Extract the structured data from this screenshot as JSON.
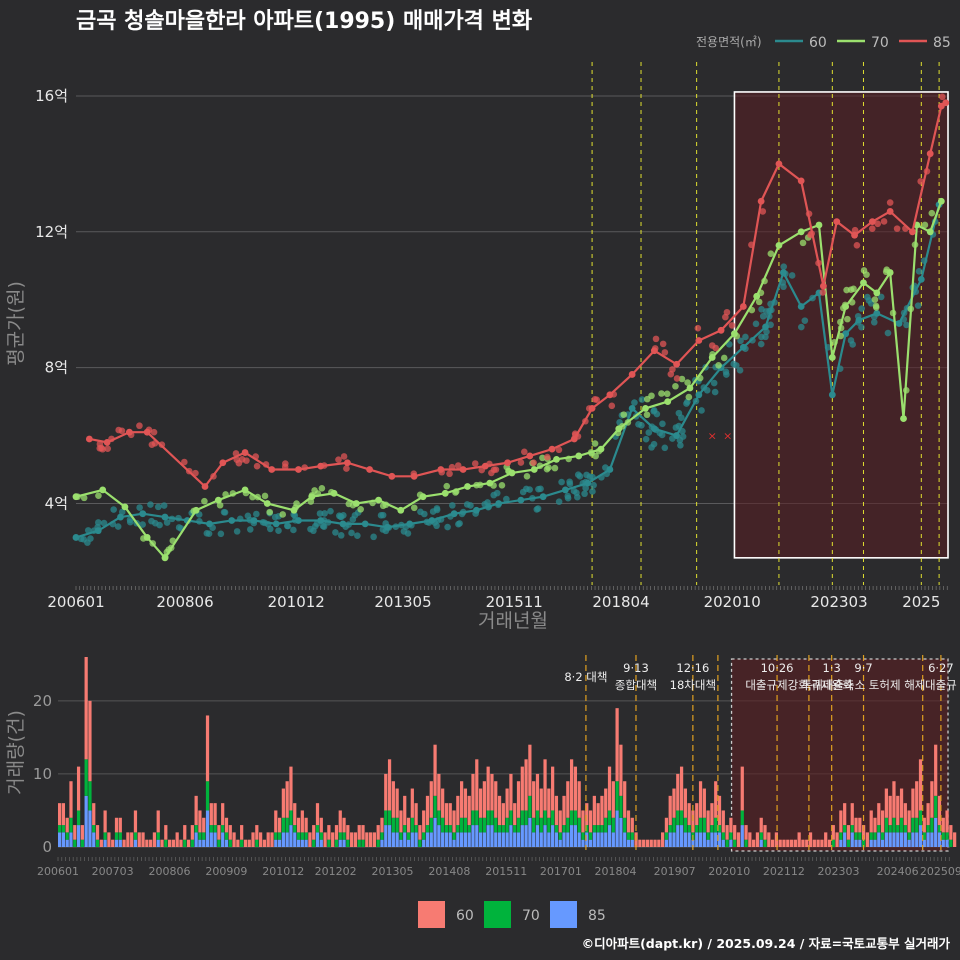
{
  "title": "금곡 청솔마을한라 아파트(1995) 매매가격 변화",
  "footer": "©디아파트(dapt.kr) / 2025.09.24 / 자료=국토교통부 실거래가",
  "colors": {
    "s60": "#2b8a8e",
    "s70": "#9be06e",
    "s85": "#e05555",
    "b60": "#f77b72",
    "b70": "#00b33c",
    "b85": "#6699ff",
    "policy": "#e0e030",
    "policyBottom": "#e0a020"
  },
  "chart_data": [
    {
      "type": "line",
      "title": "금곡 청솔마을한라 아파트(1995) 매매가격 변화",
      "xlabel": "거래년월",
      "ylabel": "평균가(원)",
      "xlim": [
        2006.0,
        2025.6
      ],
      "ylim": [
        1.6,
        17.0
      ],
      "y_ticks": [
        4,
        8,
        12,
        16
      ],
      "y_tick_labels": [
        "4억",
        "8억",
        "12억",
        "16억"
      ],
      "x_ticks": [
        2006.0,
        2008.45,
        2010.95,
        2013.35,
        2015.85,
        2018.25,
        2020.75,
        2023.15,
        2025.0
      ],
      "x_tick_labels": [
        "200601",
        "200806",
        "201012",
        "201305",
        "201511",
        "201804",
        "202010",
        "202303",
        "2025"
      ],
      "legend_title": "전용면적(㎡)",
      "policy_lines": [
        2017.6,
        2018.7,
        2019.95,
        2021.8,
        2023.0,
        2023.7,
        2025.0,
        2025.4
      ],
      "highlight_range": [
        2020.8,
        2025.6
      ],
      "cancelled_marks": [
        {
          "x": 2020.3,
          "y": 6.0
        },
        {
          "x": 2020.65,
          "y": 6.0
        }
      ],
      "series": [
        {
          "name": "60",
          "x": [
            2006.0,
            2006.5,
            2007.0,
            2007.5,
            2008.0,
            2008.5,
            2009.0,
            2009.5,
            2010.0,
            2010.5,
            2011.0,
            2011.5,
            2012.0,
            2012.5,
            2013.0,
            2013.5,
            2014.0,
            2014.5,
            2015.0,
            2015.5,
            2016.0,
            2016.5,
            2017.0,
            2017.5,
            2018.0,
            2018.5,
            2019.0,
            2019.5,
            2020.0,
            2020.5,
            2021.0,
            2021.5,
            2021.9,
            2022.3,
            2022.7,
            2023.0,
            2023.3,
            2023.6,
            2024.0,
            2024.5,
            2025.0,
            2025.4
          ],
          "y": [
            3.0,
            3.2,
            3.6,
            3.7,
            3.6,
            3.5,
            3.4,
            3.5,
            3.5,
            3.4,
            3.5,
            3.5,
            3.4,
            3.4,
            3.3,
            3.4,
            3.5,
            3.7,
            3.8,
            4.0,
            4.1,
            4.2,
            4.4,
            4.6,
            5.0,
            6.8,
            6.2,
            6.0,
            7.2,
            8.0,
            8.6,
            9.2,
            10.8,
            9.8,
            10.2,
            7.2,
            9.0,
            9.4,
            9.6,
            9.3,
            10.6,
            12.8
          ]
        },
        {
          "name": "70",
          "x": [
            2006.0,
            2006.6,
            2007.1,
            2007.6,
            2008.0,
            2008.7,
            2009.2,
            2009.8,
            2010.3,
            2010.9,
            2011.3,
            2011.8,
            2012.3,
            2012.8,
            2013.3,
            2013.8,
            2014.3,
            2014.8,
            2015.3,
            2015.8,
            2016.3,
            2016.8,
            2017.3,
            2017.8,
            2018.2,
            2018.8,
            2019.3,
            2019.8,
            2020.3,
            2020.8,
            2021.3,
            2021.8,
            2022.3,
            2022.7,
            2023.0,
            2023.3,
            2023.7,
            2024.0,
            2024.3,
            2024.6,
            2024.9,
            2025.2,
            2025.45
          ],
          "y": [
            4.2,
            4.4,
            3.9,
            3.0,
            2.4,
            3.8,
            4.1,
            4.4,
            4.0,
            3.8,
            4.2,
            4.3,
            4.0,
            4.1,
            3.8,
            4.2,
            4.3,
            4.5,
            4.6,
            4.9,
            5.0,
            5.3,
            5.4,
            5.6,
            6.2,
            6.8,
            7.0,
            7.4,
            8.3,
            9.0,
            10.1,
            11.6,
            12.0,
            12.2,
            8.3,
            9.8,
            10.5,
            10.2,
            10.8,
            6.5,
            12.2,
            12.0,
            12.9
          ]
        },
        {
          "name": "85",
          "x": [
            2006.3,
            2006.7,
            2007.2,
            2007.6,
            2008.9,
            2009.3,
            2009.8,
            2010.4,
            2011.0,
            2011.5,
            2012.1,
            2012.6,
            2013.1,
            2013.6,
            2014.2,
            2014.7,
            2015.2,
            2015.7,
            2016.2,
            2016.7,
            2017.2,
            2017.6,
            2018.0,
            2018.5,
            2019.0,
            2019.5,
            2020.0,
            2020.5,
            2021.0,
            2021.4,
            2021.8,
            2022.3,
            2022.8,
            2023.1,
            2023.5,
            2023.9,
            2024.3,
            2024.8,
            2025.2,
            2025.45,
            2025.55
          ],
          "y": [
            5.9,
            5.8,
            6.1,
            6.1,
            4.5,
            5.2,
            5.5,
            5.0,
            5.0,
            5.1,
            5.2,
            5.0,
            4.8,
            4.8,
            5.0,
            5.0,
            5.1,
            5.2,
            5.4,
            5.6,
            5.9,
            6.8,
            7.2,
            7.8,
            8.5,
            8.1,
            8.8,
            9.1,
            9.8,
            12.9,
            14.0,
            13.5,
            10.4,
            12.3,
            11.9,
            12.3,
            12.6,
            12.0,
            14.3,
            15.7,
            15.8
          ]
        }
      ]
    },
    {
      "type": "bar",
      "stacked": true,
      "ylabel": "거래량(건)",
      "ylim": [
        0,
        26
      ],
      "y_ticks": [
        0,
        10,
        20
      ],
      "x_ticks": [
        2006.0,
        2007.2,
        2008.45,
        2009.7,
        2010.95,
        2012.1,
        2013.35,
        2014.6,
        2015.85,
        2017.05,
        2018.25,
        2019.55,
        2020.75,
        2021.95,
        2023.15,
        2024.45,
        2025.4
      ],
      "x_tick_labels": [
        "200601",
        "200703",
        "200806",
        "200909",
        "201012",
        "201202",
        "201305",
        "201408",
        "201511",
        "201701",
        "201804",
        "201907",
        "202010",
        "202112",
        "202303",
        "202406",
        "202509"
      ],
      "legend": [
        "60",
        "70",
        "85"
      ],
      "policy_lines": [
        2017.6,
        2018.7,
        2019.95,
        2020.5,
        2021.8,
        2022.5,
        2023.0,
        2023.7,
        2025.0,
        2025.4
      ],
      "highlight_range": [
        2020.8,
        2025.6
      ],
      "annotations": [
        {
          "x": 2017.6,
          "date": "",
          "label": "8·2 대책"
        },
        {
          "x": 2018.7,
          "date": "9·13",
          "label": "종합대책"
        },
        {
          "x": 2019.95,
          "date": "12·16",
          "label": "18차대책"
        },
        {
          "x": 2021.8,
          "date": "10·26",
          "label": "대출규제강화"
        },
        {
          "x": 2023.0,
          "date": "1·3",
          "label": "규제완화"
        },
        {
          "x": 2023.7,
          "date": "9·7",
          "label": "특례대출축소 토허제 해제"
        },
        {
          "x": 2025.4,
          "date": "6·27",
          "label": "대출규"
        }
      ],
      "monthly_totals_by_year": {
        "2006": [
          6,
          6,
          4,
          9,
          3,
          11,
          3,
          26,
          20,
          6,
          3,
          1
        ],
        "2007": [
          5,
          2,
          1,
          4,
          4,
          1,
          2,
          2,
          5,
          2,
          2,
          1
        ],
        "2008": [
          1,
          2,
          5,
          1,
          3,
          1,
          1,
          2,
          1,
          3,
          1,
          3
        ],
        "2009": [
          7,
          5,
          4,
          18,
          6,
          6,
          3,
          6,
          4,
          3,
          2,
          1
        ],
        "2010": [
          3,
          1,
          1,
          2,
          3,
          2,
          1,
          2,
          2,
          5,
          4,
          8
        ],
        "2011": [
          9,
          11,
          6,
          4,
          5,
          4,
          2,
          3,
          6,
          4,
          2,
          3
        ],
        "2012": [
          2,
          3,
          5,
          4,
          3,
          2,
          2,
          3,
          3,
          2,
          2,
          2
        ],
        "2013": [
          3,
          4,
          10,
          12,
          9,
          8,
          5,
          7,
          4,
          8,
          6,
          3
        ],
        "2014": [
          5,
          7,
          9,
          14,
          10,
          8,
          6,
          6,
          5,
          7,
          9,
          8
        ],
        "2015": [
          7,
          10,
          12,
          8,
          9,
          11,
          10,
          9,
          7,
          6,
          8,
          10
        ],
        "2016": [
          6,
          9,
          11,
          12,
          14,
          9,
          10,
          8,
          12,
          8,
          11,
          7
        ],
        "2017": [
          5,
          7,
          9,
          12,
          11,
          9,
          5,
          6,
          5,
          7,
          6,
          7
        ],
        "2018": [
          8,
          11,
          9,
          19,
          14,
          9,
          5,
          4,
          2,
          1,
          1,
          1
        ],
        "2019": [
          1,
          1,
          1,
          2,
          4,
          7,
          8,
          10,
          11,
          8,
          6,
          5
        ],
        "2020": [
          6,
          9,
          8,
          5,
          6,
          9,
          7,
          5,
          3,
          4,
          3,
          2
        ],
        "2021": [
          11,
          3,
          2,
          1,
          2,
          4,
          3,
          2,
          1,
          2,
          1,
          1
        ],
        "2022": [
          1,
          1,
          1,
          2,
          1,
          1,
          2,
          1,
          1,
          1,
          2,
          1
        ],
        "2023": [
          3,
          2,
          5,
          6,
          3,
          6,
          4,
          4,
          3,
          2,
          5,
          4
        ],
        "2024": [
          6,
          5,
          8,
          7,
          9,
          7,
          8,
          6,
          5,
          8,
          9,
          12
        ],
        "2025": [
          4,
          6,
          9,
          14,
          7,
          4,
          5,
          3,
          2
        ]
      }
    }
  ]
}
